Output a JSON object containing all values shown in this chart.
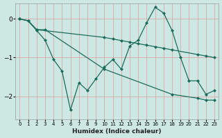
{
  "xlabel": "Humidex (Indice chaleur)",
  "ylabel": "",
  "background_color": "#cde8e2",
  "grid_color": "#b8d8d0",
  "line_color": "#1a6b5a",
  "xlim": [
    -0.5,
    23.5
  ],
  "ylim": [
    -2.6,
    0.4
  ],
  "yticks": [
    0,
    -1,
    -2
  ],
  "xticks": [
    0,
    1,
    2,
    3,
    4,
    5,
    6,
    7,
    8,
    9,
    10,
    11,
    12,
    13,
    14,
    15,
    16,
    17,
    18,
    19,
    20,
    21,
    22,
    23
  ],
  "line1_x": [
    0,
    1,
    2,
    10,
    11,
    12,
    13,
    14,
    15,
    16,
    17,
    18,
    21,
    22,
    23
  ],
  "line1_y": [
    0,
    -0.05,
    -0.28,
    -0.48,
    -0.52,
    -0.56,
    -0.6,
    -0.64,
    -0.68,
    -0.72,
    -0.76,
    -0.8,
    -0.92,
    -0.96,
    -1.0
  ],
  "line2_x": [
    0,
    1,
    2,
    3,
    4,
    5,
    6,
    7,
    8,
    9,
    10,
    11,
    12,
    13,
    14,
    15,
    16,
    17,
    18,
    19,
    20,
    21,
    22,
    23
  ],
  "line2_y": [
    0,
    -0.05,
    -0.3,
    -0.55,
    -1.05,
    -1.35,
    -2.35,
    -1.65,
    -1.85,
    -1.55,
    -1.25,
    -1.05,
    -1.3,
    -0.7,
    -0.55,
    -0.1,
    0.3,
    0.15,
    -0.3,
    -1.0,
    -1.6,
    -1.6,
    -1.95,
    -1.85
  ],
  "line3_x": [
    0,
    1,
    2,
    3,
    10,
    18,
    21,
    22,
    23
  ],
  "line3_y": [
    0,
    -0.05,
    -0.28,
    -0.28,
    -1.3,
    -1.95,
    -2.05,
    -2.1,
    -2.1
  ]
}
